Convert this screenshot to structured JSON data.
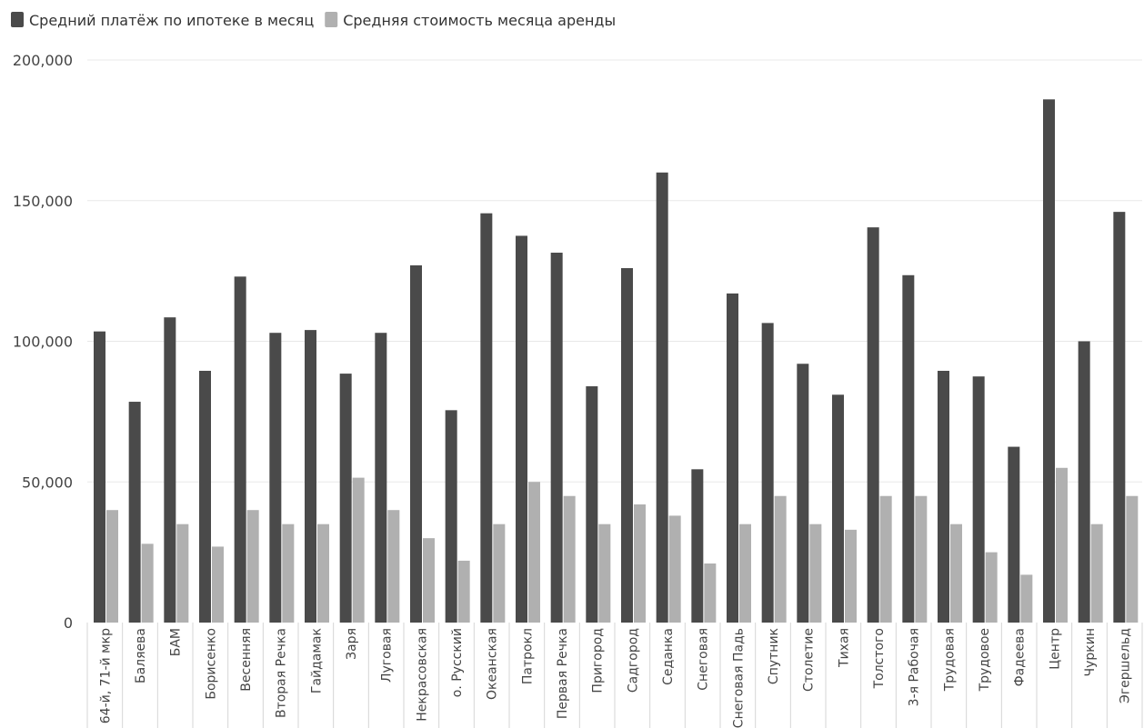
{
  "chart_data": {
    "type": "bar",
    "title": "",
    "xlabel": "",
    "ylabel": "",
    "ylim": [
      0,
      200000
    ],
    "yticks": [
      0,
      50000,
      100000,
      150000,
      200000
    ],
    "ytick_labels": [
      "0",
      "50,000",
      "100,000",
      "150,000",
      "200,000"
    ],
    "grid": true,
    "legend_position": "top-left",
    "categories": [
      "64-й, 71-й мкр",
      "Баляева",
      "БАМ",
      "Борисенко",
      "Весенняя",
      "Вторая Речка",
      "Гайдамак",
      "Заря",
      "Луговая",
      "Некрасовская",
      "о. Русский",
      "Океанская",
      "Патрокл",
      "Первая Речка",
      "Пригород",
      "Садгород",
      "Седанка",
      "Снеговая",
      "Снеговая Падь",
      "Спутник",
      "Столетие",
      "Тихая",
      "Толстого",
      "3-я Рабочая",
      "Трудовая",
      "Трудовое",
      "Фадеева",
      "Центр",
      "Чуркин",
      "Эгершельд"
    ],
    "series": [
      {
        "name": "Средний платёж по ипотеке в месяц",
        "color": "#4a4a4a",
        "values": [
          103500,
          78500,
          108500,
          89500,
          123000,
          103000,
          104000,
          88500,
          103000,
          127000,
          75500,
          145500,
          137500,
          131500,
          84000,
          126000,
          160000,
          54500,
          117000,
          106500,
          92000,
          81000,
          140500,
          123500,
          89500,
          87500,
          62500,
          186000,
          100000,
          146000
        ]
      },
      {
        "name": "Средняя стоимость месяца аренды",
        "color": "#b0b0b0",
        "values": [
          40000,
          28000,
          35000,
          27000,
          40000,
          35000,
          35000,
          51500,
          40000,
          30000,
          22000,
          35000,
          50000,
          45000,
          35000,
          42000,
          38000,
          21000,
          35000,
          45000,
          35000,
          33000,
          45000,
          45000,
          35000,
          25000,
          17000,
          55000,
          35000,
          45000
        ]
      }
    ]
  },
  "colors": {
    "grid": "#e8e8e8",
    "axis_text": "#444444",
    "legend_text": "#333333",
    "category_separator": "#d6d6d6"
  }
}
